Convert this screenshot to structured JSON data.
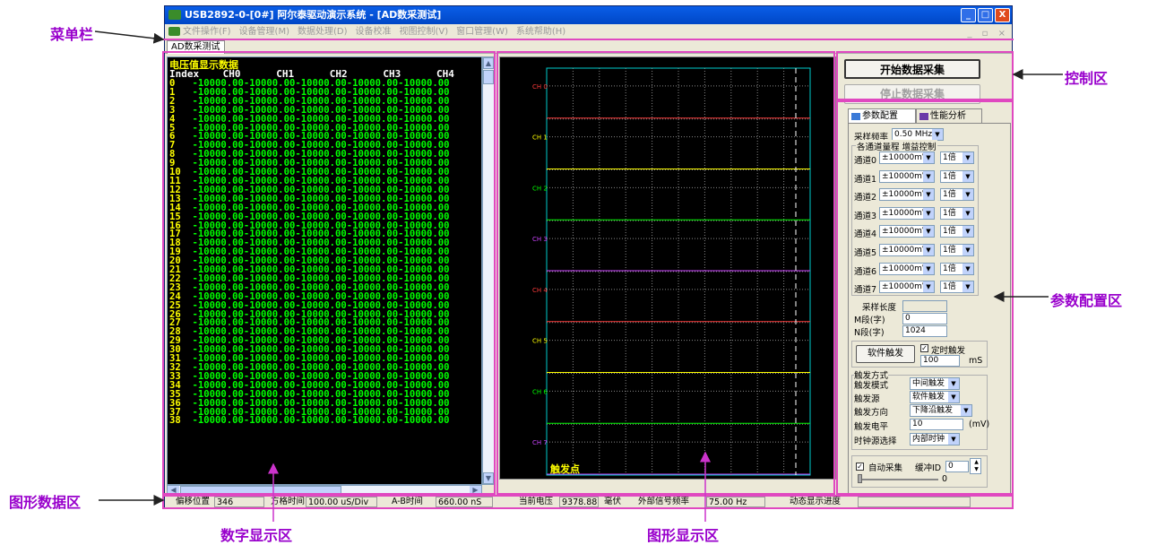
{
  "window": {
    "title": "USB2892-0-[0#] 阿尔泰驱动演示系统 - [AD数采测试]",
    "minimize": "_",
    "maximize": "□",
    "close": "X"
  },
  "menu": {
    "items": [
      "文件操作(F)",
      "设备管理(M)",
      "数据处理(D)",
      "设备校准",
      "视图控制(V)",
      "窗口管理(W)",
      "系统帮助(H)"
    ],
    "mdi_buttons": "_ ▫ ×"
  },
  "doc_tab": "AD数采测试",
  "numeric": {
    "title": "电压值显示数据",
    "header": "Index    CH0      CH1      CH2      CH3      CH4",
    "row_value": "-10000.00",
    "row_count": 39
  },
  "graph": {
    "channels": [
      {
        "label": "CH 0",
        "color": "#ff3b3b"
      },
      {
        "label": "CH 1",
        "color": "#ffff00"
      },
      {
        "label": "CH 2",
        "color": "#00ff00"
      },
      {
        "label": "CH 3",
        "color": "#cc44ff"
      },
      {
        "label": "CH 4",
        "color": "#ff3b3b"
      },
      {
        "label": "CH 5",
        "color": "#ffff00"
      },
      {
        "label": "CH 6",
        "color": "#00ff00"
      },
      {
        "label": "CH 7",
        "color": "#cc44ff"
      }
    ],
    "trigger_label": "触发点"
  },
  "controls": {
    "start": "开始数据采集",
    "stop": "停止数据采集",
    "tab_config": "参数配置",
    "tab_perf": "性能分析",
    "freq_label": "采样频率",
    "freq_value": "0.50 MHz",
    "group_range": "各通道量程 增益控制",
    "channels": [
      {
        "name": "通道0",
        "range": "±10000mV",
        "gain": "1倍"
      },
      {
        "name": "通道1",
        "range": "±10000mV",
        "gain": "1倍"
      },
      {
        "name": "通道2",
        "range": "±10000mV",
        "gain": "1倍"
      },
      {
        "name": "通道3",
        "range": "±10000mV",
        "gain": "1倍"
      },
      {
        "name": "通道4",
        "range": "±10000mV",
        "gain": "1倍"
      },
      {
        "name": "通道5",
        "range": "±10000mV",
        "gain": "1倍"
      },
      {
        "name": "通道6",
        "range": "±10000mV",
        "gain": "1倍"
      },
      {
        "name": "通道7",
        "range": "±10000mV",
        "gain": "1倍"
      }
    ],
    "sample_len_label": "采样长度",
    "m_label": "M段(字)",
    "m_value": "0",
    "n_label": "N段(字)",
    "n_value": "1024",
    "soft_trigger": "软件触发",
    "timed_trigger": "定时触发",
    "timed_value": "100",
    "timed_unit": "mS",
    "trig_group": "触发方式",
    "trig_mode_label": "触发模式",
    "trig_mode": "中间触发",
    "trig_src_label": "触发源",
    "trig_src": "软件触发",
    "trig_dir_label": "触发方向",
    "trig_dir": "下降沿触发",
    "trig_level_label": "触发电平",
    "trig_level": "10",
    "trig_level_unit": "(mV)",
    "clock_label": "时钟源选择",
    "clock": "内部时钟",
    "auto_collect": "自动采集",
    "buffer_label": "缓冲ID",
    "buffer_value": "0",
    "slider_value": "0"
  },
  "status": {
    "offset_label": "偏移位置",
    "offset": "346",
    "grid_label": "方格时间",
    "grid": "100.00 uS/Div",
    "ab_label": "A-B时间",
    "ab": "660.00 nS",
    "volt_label": "当前电压",
    "volt": "9378.88",
    "volt_unit": "毫伏",
    "ext_label": "外部信号频率",
    "ext": "75.00 Hz",
    "progress_label": "动态显示进度"
  },
  "annotations": {
    "menu": "菜单栏",
    "control": "控制区",
    "param": "参数配置区",
    "graphdata": "图形数据区",
    "numeric": "数字显示区",
    "graph": "图形显示区"
  }
}
